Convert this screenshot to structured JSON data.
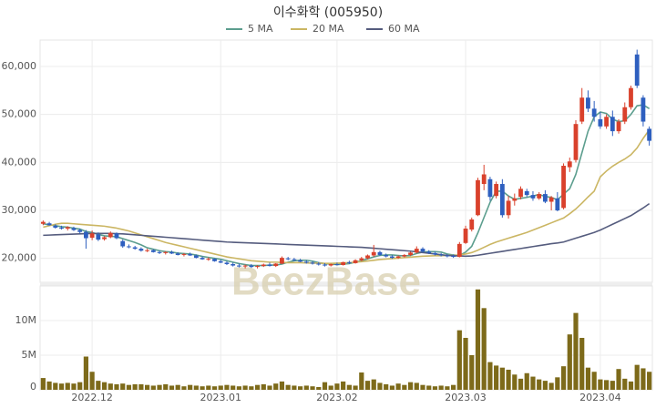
{
  "chart_data": [
    {
      "type": "candlestick",
      "title": "이수화학 (005950)",
      "watermark": "BeezBase",
      "grid": true,
      "up_color": "#d9412c",
      "down_color": "#2e5fbf",
      "ylim": [
        15000,
        65500
      ],
      "yticks": [
        {
          "value": 20000,
          "label": "20,000"
        },
        {
          "value": 30000,
          "label": "30,000"
        },
        {
          "value": 40000,
          "label": "40,000"
        },
        {
          "value": 50000,
          "label": "50,000"
        },
        {
          "value": 60000,
          "label": "60,000"
        }
      ],
      "open": [
        27200,
        27300,
        26800,
        26400,
        26200,
        26300,
        25900,
        25500,
        24300,
        25000,
        24000,
        24400,
        25200,
        23600,
        22500,
        22300,
        22000,
        21600,
        21700,
        21300,
        21100,
        21300,
        21000,
        20800,
        20900,
        20600,
        20100,
        19800,
        19900,
        19400,
        19100,
        18800,
        18500,
        18300,
        18500,
        18200,
        18400,
        18700,
        18400,
        18900,
        20000,
        19800,
        19600,
        19300,
        19100,
        18900,
        18700,
        18500,
        18800,
        18600,
        19200,
        19000,
        19600,
        20000,
        20600,
        21300,
        20700,
        20400,
        20100,
        20400,
        20700,
        21200,
        22000,
        21400,
        21100,
        20800,
        20600,
        20500,
        20300,
        23200,
        26000,
        29000,
        35500,
        36500,
        33000,
        35500,
        29000,
        32000,
        32800,
        34000,
        33200,
        32500,
        33400,
        31800,
        32500,
        30500,
        39000,
        40500,
        48500,
        53500,
        51200,
        49000,
        47500,
        49500,
        46500,
        48500,
        51500,
        62500,
        53500,
        47000
      ],
      "high": [
        27900,
        27600,
        27100,
        26800,
        26700,
        26600,
        26200,
        25900,
        25800,
        25400,
        24600,
        25600,
        25400,
        23900,
        22900,
        22600,
        22300,
        22000,
        21900,
        21600,
        21500,
        21600,
        21300,
        21100,
        21200,
        20800,
        20400,
        20200,
        20000,
        19700,
        19400,
        19100,
        18900,
        18700,
        18800,
        18600,
        18900,
        19100,
        19000,
        20400,
        20300,
        20100,
        19900,
        19600,
        19400,
        19200,
        19000,
        18900,
        19100,
        19300,
        19500,
        19800,
        20300,
        20800,
        22800,
        21600,
        21000,
        20700,
        20600,
        20900,
        21400,
        22500,
        22300,
        21700,
        21400,
        21100,
        20900,
        20800,
        23400,
        26800,
        28500,
        36800,
        39500,
        37000,
        36000,
        36500,
        33000,
        33500,
        35000,
        34500,
        34000,
        33800,
        34200,
        33000,
        33800,
        39800,
        41000,
        48800,
        55500,
        55000,
        52800,
        50500,
        50000,
        50800,
        49000,
        52500,
        56000,
        63500,
        54000,
        47500
      ],
      "low": [
        26900,
        26800,
        26200,
        26000,
        25800,
        25700,
        25200,
        22000,
        23800,
        23600,
        23700,
        24200,
        24000,
        22200,
        22100,
        21800,
        21400,
        21300,
        21200,
        20900,
        20800,
        20900,
        20600,
        20400,
        20500,
        20000,
        19700,
        19500,
        19300,
        19000,
        18600,
        18300,
        18100,
        17900,
        18000,
        17900,
        18200,
        18300,
        18200,
        18800,
        19600,
        19400,
        19200,
        18900,
        18700,
        18500,
        18300,
        18300,
        18500,
        18500,
        18800,
        18900,
        19400,
        19800,
        20300,
        20500,
        20200,
        19900,
        19900,
        20200,
        20500,
        21000,
        21200,
        20900,
        20600,
        20400,
        20200,
        20100,
        20200,
        23000,
        25600,
        28800,
        34200,
        32000,
        32500,
        28500,
        28300,
        31000,
        32300,
        32800,
        32000,
        32200,
        31500,
        30000,
        29800,
        30200,
        38000,
        40000,
        48000,
        50500,
        48500,
        47000,
        47000,
        45500,
        46000,
        48000,
        51000,
        55500,
        47500,
        43500
      ],
      "close": [
        27600,
        26900,
        26400,
        26200,
        26500,
        25900,
        25500,
        24200,
        25200,
        23900,
        24400,
        25300,
        24200,
        22500,
        22400,
        22000,
        21600,
        21700,
        21300,
        21100,
        21300,
        21000,
        20700,
        20900,
        20600,
        20100,
        19800,
        19900,
        19400,
        19100,
        18800,
        18500,
        18300,
        18500,
        18200,
        18400,
        18700,
        18400,
        18900,
        20100,
        19800,
        19600,
        19300,
        19100,
        18900,
        18700,
        18500,
        18800,
        18600,
        19200,
        19000,
        19600,
        20000,
        20600,
        21300,
        20700,
        20400,
        20100,
        20400,
        20700,
        21200,
        22000,
        21400,
        21100,
        20800,
        20600,
        20500,
        20300,
        23000,
        26200,
        28100,
        36300,
        37500,
        32800,
        35500,
        29000,
        32000,
        32500,
        34500,
        33200,
        32500,
        33400,
        31800,
        32700,
        30000,
        39300,
        40200,
        48000,
        53500,
        51200,
        49500,
        47500,
        49500,
        46500,
        48500,
        51500,
        55500,
        56000,
        48500,
        44500
      ],
      "series": [
        {
          "name": "5 MA",
          "color": "#5c9e8e",
          "values": [
            27200,
            27000,
            26800,
            26600,
            26500,
            26300,
            26100,
            25600,
            25400,
            25000,
            24700,
            24600,
            24500,
            24100,
            23700,
            23300,
            22800,
            22200,
            21900,
            21600,
            21400,
            21300,
            21100,
            21000,
            20900,
            20700,
            20400,
            20200,
            20000,
            19800,
            19500,
            19200,
            18900,
            18700,
            18500,
            18500,
            18500,
            18600,
            18600,
            18800,
            19200,
            19500,
            19600,
            19600,
            19400,
            19100,
            18900,
            18800,
            18700,
            18800,
            18900,
            19200,
            19500,
            19900,
            20300,
            20600,
            20700,
            20700,
            20600,
            20500,
            20600,
            21000,
            21300,
            21400,
            21400,
            21300,
            20900,
            20700,
            20600,
            21300,
            22500,
            25300,
            28500,
            31700,
            34000,
            34000,
            33000,
            32300,
            32500,
            32700,
            33000,
            33300,
            32900,
            32700,
            32200,
            33400,
            34500,
            37500,
            42000,
            46500,
            49500,
            50500,
            50200,
            49000,
            48500,
            48700,
            50000,
            51800,
            52000,
            51200
          ]
        },
        {
          "name": "20 MA",
          "color": "#cbb663",
          "values": [
            26500,
            26800,
            27100,
            27300,
            27300,
            27200,
            27100,
            27000,
            26900,
            26800,
            26700,
            26500,
            26300,
            26000,
            25700,
            25300,
            24900,
            24500,
            24100,
            23700,
            23300,
            23000,
            22700,
            22400,
            22100,
            21800,
            21500,
            21200,
            20900,
            20600,
            20300,
            20100,
            19900,
            19700,
            19500,
            19400,
            19300,
            19200,
            19200,
            19150,
            19100,
            19100,
            19100,
            19050,
            19000,
            19000,
            18950,
            18950,
            19000,
            19050,
            19100,
            19200,
            19300,
            19450,
            19600,
            19750,
            19850,
            19950,
            20050,
            20150,
            20250,
            20350,
            20450,
            20500,
            20550,
            20550,
            20600,
            20600,
            20700,
            20900,
            21200,
            21700,
            22300,
            22900,
            23400,
            23800,
            24200,
            24600,
            25000,
            25400,
            25900,
            26400,
            26900,
            27400,
            27900,
            28400,
            29300,
            30300,
            31500,
            32800,
            34000,
            37000,
            38200,
            39200,
            40000,
            40700,
            41600,
            43000,
            45000,
            46800
          ]
        },
        {
          "name": "60 MA",
          "color": "#555c7e",
          "values": [
            24800,
            24850,
            24900,
            24950,
            25000,
            25050,
            25100,
            25150,
            25200,
            25200,
            25200,
            25200,
            25150,
            25100,
            25000,
            24900,
            24800,
            24700,
            24600,
            24500,
            24400,
            24300,
            24200,
            24100,
            24000,
            23900,
            23800,
            23700,
            23600,
            23500,
            23400,
            23350,
            23300,
            23250,
            23200,
            23150,
            23100,
            23050,
            23000,
            22950,
            22900,
            22850,
            22800,
            22750,
            22700,
            22650,
            22600,
            22550,
            22500,
            22450,
            22400,
            22350,
            22300,
            22200,
            22100,
            22000,
            21900,
            21800,
            21700,
            21600,
            21500,
            21350,
            21200,
            21050,
            20900,
            20750,
            20600,
            20550,
            20500,
            20450,
            20500,
            20650,
            20850,
            21050,
            21250,
            21450,
            21650,
            21850,
            22050,
            22250,
            22450,
            22650,
            22850,
            23050,
            23200,
            23400,
            23800,
            24200,
            24600,
            25000,
            25400,
            25900,
            26500,
            27100,
            27700,
            28300,
            28900,
            29700,
            30500,
            31400
          ]
        }
      ]
    },
    {
      "type": "bar",
      "color": "#7d6a1a",
      "grid": true,
      "ylim": [
        0,
        15000000
      ],
      "yticks": [
        0,
        {
          "value": 5000000,
          "label": "5M"
        },
        {
          "value": 10000000,
          "label": "10M"
        }
      ],
      "categories": [
        null,
        null,
        null,
        null,
        null,
        null,
        null,
        null,
        "2022.12",
        null,
        null,
        null,
        null,
        null,
        null,
        null,
        null,
        null,
        null,
        null,
        null,
        null,
        null,
        null,
        null,
        null,
        null,
        null,
        null,
        "2023.01",
        null,
        null,
        null,
        null,
        null,
        null,
        null,
        null,
        null,
        null,
        null,
        null,
        null,
        null,
        null,
        null,
        null,
        null,
        "2023.02",
        null,
        null,
        null,
        null,
        null,
        null,
        null,
        null,
        null,
        null,
        null,
        null,
        null,
        null,
        null,
        null,
        null,
        null,
        null,
        null,
        "2023.03",
        null,
        null,
        null,
        null,
        null,
        null,
        null,
        null,
        null,
        null,
        null,
        null,
        null,
        null,
        null,
        null,
        null,
        null,
        null,
        null,
        null,
        "2023.04",
        null,
        null,
        null,
        null,
        null,
        null,
        null,
        null
      ],
      "values": [
        1700000,
        1200000,
        1000000,
        900000,
        1000000,
        900000,
        1100000,
        4800000,
        2600000,
        1300000,
        1100000,
        900000,
        800000,
        900000,
        700000,
        800000,
        800000,
        700000,
        600000,
        700000,
        800000,
        600000,
        700000,
        500000,
        700000,
        600000,
        500000,
        600000,
        500000,
        600000,
        700000,
        600000,
        500000,
        600000,
        500000,
        700000,
        800000,
        600000,
        900000,
        1200000,
        700000,
        600000,
        500000,
        600000,
        500000,
        400000,
        1100000,
        600000,
        900000,
        1200000,
        700000,
        600000,
        2500000,
        1300000,
        1500000,
        1000000,
        800000,
        600000,
        900000,
        700000,
        1100000,
        1000000,
        700000,
        600000,
        500000,
        600000,
        500000,
        700000,
        8600000,
        7500000,
        5000000,
        14500000,
        11800000,
        4000000,
        3500000,
        3200000,
        2900000,
        2200000,
        1600000,
        2400000,
        1900000,
        1500000,
        1300000,
        1000000,
        1800000,
        3400000,
        8000000,
        11100000,
        7500000,
        3200000,
        2600000,
        1500000,
        1400000,
        1300000,
        3000000,
        1600000,
        1200000,
        3600000,
        3100000,
        2600000
      ]
    }
  ]
}
